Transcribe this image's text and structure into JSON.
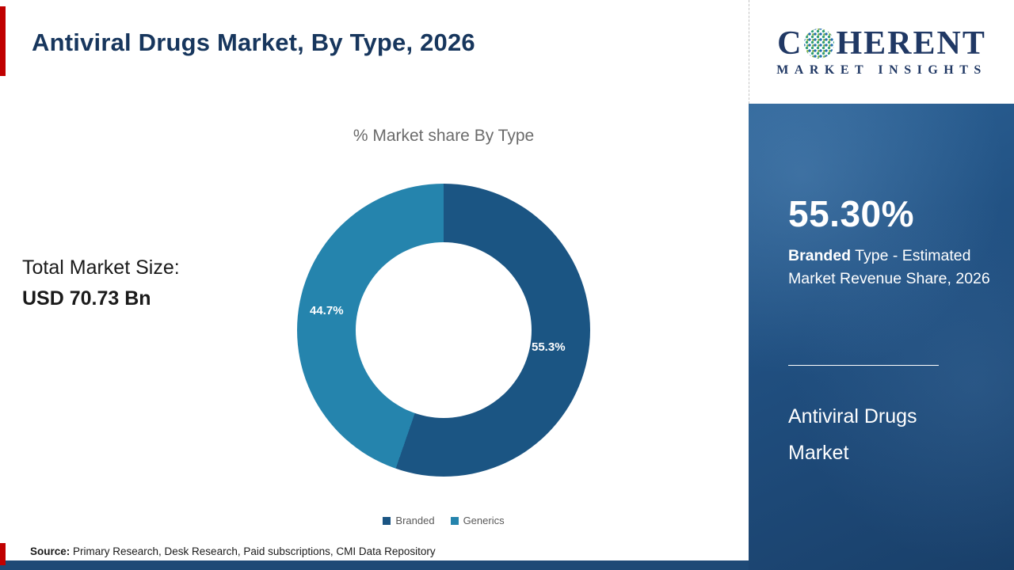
{
  "header": {
    "title": "Antiviral Drugs Market, By Type, 2026"
  },
  "logo": {
    "brand_first_letter": "C",
    "brand_rest": "HERENT",
    "brand_sub": "MARKET INSIGHTS"
  },
  "total_market": {
    "label": "Total Market Size:",
    "value": "USD 70.73 Bn"
  },
  "chart_data": {
    "type": "pie",
    "variant": "donut",
    "title": "% Market share By Type",
    "categories": [
      "Branded",
      "Generics"
    ],
    "values": [
      55.3,
      44.7
    ],
    "labels": [
      "55.3%",
      "44.7%"
    ],
    "colors": [
      "#1b5583",
      "#2584ad"
    ],
    "legend_position": "bottom",
    "start_angle_deg": 0,
    "direction": "clockwise"
  },
  "sidebar": {
    "stat": "55.30%",
    "desc_bold": "Branded",
    "desc_rest": " Type - Estimated Market Revenue Share, 2026",
    "product_name": "Antiviral Drugs Market"
  },
  "footer": {
    "source_label": "Source:",
    "source_text": " Primary Research, Desk Research, Paid subscriptions, CMI Data Repository"
  },
  "accent_colors": {
    "red": "#c00000",
    "navy": "#1e4976"
  }
}
